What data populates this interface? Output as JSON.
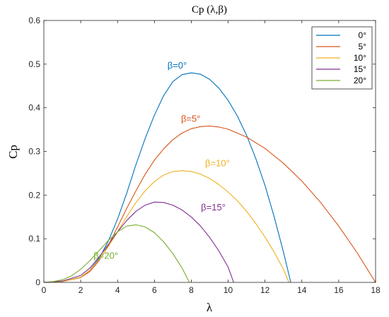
{
  "chart_data": {
    "type": "line",
    "title": "Cp (λ,β)",
    "xlabel": "λ",
    "ylabel": "Cp",
    "xlim": [
      0,
      18
    ],
    "ylim": [
      0,
      0.6
    ],
    "xticks": [
      0,
      2,
      4,
      6,
      8,
      10,
      12,
      14,
      16,
      18
    ],
    "yticks": [
      0,
      0.1,
      0.2,
      0.3,
      0.4,
      0.5,
      0.6
    ],
    "grid": false,
    "legend_position": "top-right",
    "series": [
      {
        "name": "0°",
        "color": "#0072BD",
        "annotation": "β=0°",
        "points": [
          [
            0,
            0
          ],
          [
            1,
            0.002
          ],
          [
            2,
            0.012
          ],
          [
            2.5,
            0.028
          ],
          [
            3,
            0.055
          ],
          [
            3.5,
            0.095
          ],
          [
            4,
            0.145
          ],
          [
            4.5,
            0.205
          ],
          [
            5,
            0.27
          ],
          [
            5.5,
            0.33
          ],
          [
            6,
            0.383
          ],
          [
            6.5,
            0.428
          ],
          [
            7,
            0.46
          ],
          [
            7.5,
            0.476
          ],
          [
            8,
            0.48
          ],
          [
            8.5,
            0.477
          ],
          [
            9,
            0.465
          ],
          [
            9.5,
            0.445
          ],
          [
            10,
            0.417
          ],
          [
            10.5,
            0.381
          ],
          [
            11,
            0.337
          ],
          [
            11.5,
            0.284
          ],
          [
            12,
            0.222
          ],
          [
            12.5,
            0.15
          ],
          [
            13,
            0.07
          ],
          [
            13.4,
            0
          ]
        ]
      },
      {
        "name": "5°",
        "color": "#D95319",
        "annotation": "β=5°",
        "points": [
          [
            0,
            0
          ],
          [
            1,
            0.002
          ],
          [
            2,
            0.011
          ],
          [
            2.5,
            0.025
          ],
          [
            3,
            0.05
          ],
          [
            3.5,
            0.085
          ],
          [
            4,
            0.127
          ],
          [
            4.5,
            0.17
          ],
          [
            5,
            0.21
          ],
          [
            5.5,
            0.248
          ],
          [
            6,
            0.28
          ],
          [
            6.5,
            0.306
          ],
          [
            7,
            0.327
          ],
          [
            7.5,
            0.342
          ],
          [
            8,
            0.352
          ],
          [
            8.5,
            0.357
          ],
          [
            9,
            0.358
          ],
          [
            9.5,
            0.356
          ],
          [
            10,
            0.351
          ],
          [
            11,
            0.333
          ],
          [
            12,
            0.307
          ],
          [
            13,
            0.273
          ],
          [
            14,
            0.232
          ],
          [
            15,
            0.184
          ],
          [
            16,
            0.129
          ],
          [
            17,
            0.068
          ],
          [
            18,
            0
          ]
        ]
      },
      {
        "name": "10°",
        "color": "#EDB120",
        "annotation": "β=10°",
        "points": [
          [
            0,
            0
          ],
          [
            1,
            0.002
          ],
          [
            2,
            0.012
          ],
          [
            2.5,
            0.028
          ],
          [
            3,
            0.052
          ],
          [
            3.5,
            0.082
          ],
          [
            4,
            0.116
          ],
          [
            4.5,
            0.151
          ],
          [
            5,
            0.183
          ],
          [
            5.5,
            0.21
          ],
          [
            6,
            0.231
          ],
          [
            6.5,
            0.246
          ],
          [
            7,
            0.254
          ],
          [
            7.5,
            0.256
          ],
          [
            8,
            0.254
          ],
          [
            8.5,
            0.248
          ],
          [
            9,
            0.238
          ],
          [
            9.5,
            0.224
          ],
          [
            10,
            0.207
          ],
          [
            10.5,
            0.187
          ],
          [
            11,
            0.163
          ],
          [
            11.5,
            0.135
          ],
          [
            12,
            0.104
          ],
          [
            12.5,
            0.069
          ],
          [
            13,
            0.03
          ],
          [
            13.3,
            0
          ]
        ]
      },
      {
        "name": "15°",
        "color": "#7E2F8E",
        "annotation": "β=15°",
        "points": [
          [
            0,
            0
          ],
          [
            1,
            0.003
          ],
          [
            2,
            0.016
          ],
          [
            2.5,
            0.033
          ],
          [
            3,
            0.058
          ],
          [
            3.5,
            0.087
          ],
          [
            4,
            0.116
          ],
          [
            4.5,
            0.142
          ],
          [
            5,
            0.163
          ],
          [
            5.5,
            0.177
          ],
          [
            6,
            0.184
          ],
          [
            6.5,
            0.183
          ],
          [
            7,
            0.177
          ],
          [
            7.5,
            0.166
          ],
          [
            8,
            0.15
          ],
          [
            8.5,
            0.129
          ],
          [
            9,
            0.103
          ],
          [
            9.5,
            0.072
          ],
          [
            10,
            0.035
          ],
          [
            10.3,
            0
          ]
        ]
      },
      {
        "name": "20°",
        "color": "#77AC30",
        "annotation": "β=20°",
        "points": [
          [
            0,
            0
          ],
          [
            0.5,
            0.002
          ],
          [
            1,
            0.006
          ],
          [
            1.5,
            0.015
          ],
          [
            2,
            0.03
          ],
          [
            2.5,
            0.05
          ],
          [
            3,
            0.073
          ],
          [
            3.5,
            0.096
          ],
          [
            4,
            0.116
          ],
          [
            4.5,
            0.129
          ],
          [
            5,
            0.132
          ],
          [
            5.5,
            0.127
          ],
          [
            6,
            0.114
          ],
          [
            6.5,
            0.093
          ],
          [
            7,
            0.066
          ],
          [
            7.5,
            0.033
          ],
          [
            7.9,
            0
          ]
        ]
      }
    ]
  }
}
